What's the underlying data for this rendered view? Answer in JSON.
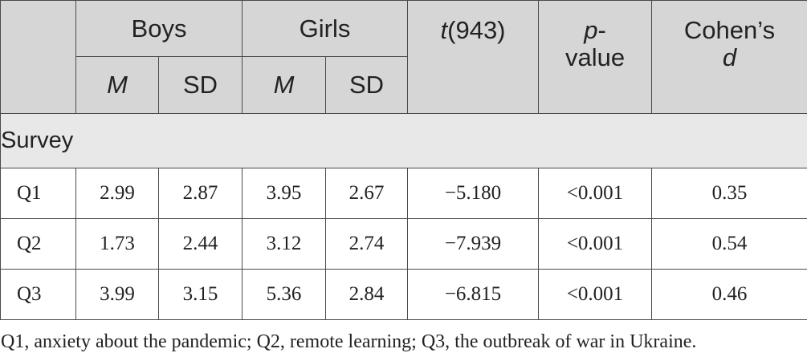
{
  "header": {
    "boys": "Boys",
    "girls": "Girls",
    "t_stat_italic": "t",
    "t_stat_df": "(943)",
    "p_italic": "p",
    "p_rest": "-",
    "p_line2": "value",
    "cohens": "Cohen’s",
    "cohens_d": "d",
    "m": "M",
    "sd": "SD"
  },
  "section_label": "Survey",
  "rows": [
    {
      "label": "Q1",
      "boys_m": "2.99",
      "boys_sd": "2.87",
      "girls_m": "3.95",
      "girls_sd": "2.67",
      "t": "−5.180",
      "p": "<0.001",
      "d": "0.35"
    },
    {
      "label": "Q2",
      "boys_m": "1.73",
      "boys_sd": "2.44",
      "girls_m": "3.12",
      "girls_sd": "2.74",
      "t": "−7.939",
      "p": "<0.001",
      "d": "0.54"
    },
    {
      "label": "Q3",
      "boys_m": "3.99",
      "boys_sd": "3.15",
      "girls_m": "5.36",
      "girls_sd": "2.84",
      "t": "−6.815",
      "p": "<0.001",
      "d": "0.46"
    }
  ],
  "footnote": "Q1, anxiety about the pandemic; Q2, remote learning; Q3, the outbreak of war in Ukraine.",
  "colors": {
    "header_bg": "#d6d6d6",
    "section_bg": "#e8e8e8",
    "border": "#4a4a4a",
    "text": "#222222"
  }
}
